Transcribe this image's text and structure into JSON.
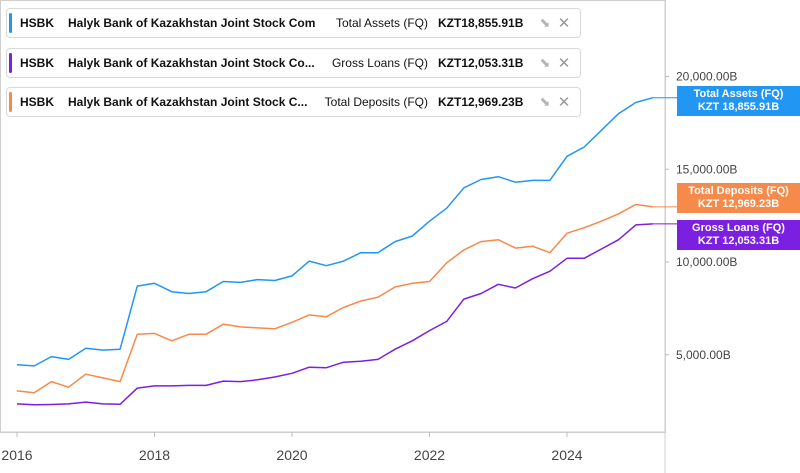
{
  "chart_data": {
    "type": "line",
    "x_ticks": [
      "2016",
      "2018",
      "2020",
      "2022",
      "2024"
    ],
    "y_ticks": [
      "5,000.00B",
      "10,000.00B",
      "15,000.00B",
      "20,000.00B"
    ],
    "ylim": [
      0,
      24000
    ],
    "grid": false,
    "x_dates": [
      2016.0,
      2016.25,
      2016.5,
      2016.75,
      2017.0,
      2017.25,
      2017.5,
      2017.75,
      2018.0,
      2018.25,
      2018.5,
      2018.75,
      2019.0,
      2019.25,
      2019.5,
      2019.75,
      2020.0,
      2020.25,
      2020.5,
      2020.75,
      2021.0,
      2021.25,
      2021.5,
      2021.75,
      2022.0,
      2022.25,
      2022.5,
      2022.75,
      2023.0,
      2023.25,
      2023.5,
      2023.75,
      2024.0,
      2024.25,
      2024.5,
      2024.75,
      2025.0,
      2025.25
    ],
    "series": [
      {
        "ticker": "HSBK",
        "company": "Halyk Bank of Kazakhstan Joint Stock Com...",
        "name": "Total Assets (FQ)",
        "value_label": "KZT18,855.91B",
        "tag_line1": "Total Assets (FQ)",
        "tag_line2": "KZT 18,855.91B",
        "color": "#2196F3",
        "values": [
          4460,
          4400,
          4900,
          4750,
          5350,
          5250,
          5300,
          8700,
          8850,
          8400,
          8300,
          8400,
          8950,
          8900,
          9050,
          9000,
          9250,
          10050,
          9800,
          10050,
          10500,
          10500,
          11100,
          11400,
          12200,
          12900,
          14000,
          14450,
          14600,
          14300,
          14400,
          14400,
          15700,
          16200,
          17100,
          18000,
          18600,
          18855.91
        ]
      },
      {
        "ticker": "HSBK",
        "company": "Halyk Bank of Kazakhstan Joint Stock Co...",
        "name": "Gross Loans (FQ)",
        "value_label": "KZT12,053.31B",
        "tag_line1": "Gross Loans (FQ)",
        "tag_line2": "KZT 12,053.31B",
        "color": "#7B1FE0",
        "values": [
          2350,
          2300,
          2320,
          2350,
          2450,
          2350,
          2330,
          3200,
          3320,
          3320,
          3350,
          3350,
          3580,
          3550,
          3650,
          3800,
          4000,
          4330,
          4300,
          4600,
          4650,
          4750,
          5300,
          5750,
          6300,
          6800,
          8000,
          8300,
          8800,
          8600,
          9100,
          9500,
          10200,
          10200,
          10700,
          11200,
          12000,
          12053.31
        ]
      },
      {
        "ticker": "HSBK",
        "company": "Halyk Bank of Kazakhstan Joint Stock C...",
        "name": "Total Deposits (FQ)",
        "value_label": "KZT12,969.23B",
        "tag_line1": "Total Deposits (FQ)",
        "tag_line2": "KZT 12,969.23B",
        "color": "#F58A4B",
        "values": [
          3050,
          2950,
          3550,
          3250,
          3950,
          3750,
          3550,
          6100,
          6150,
          5750,
          6100,
          6100,
          6650,
          6500,
          6450,
          6400,
          6750,
          7150,
          7050,
          7550,
          7900,
          8100,
          8650,
          8850,
          8950,
          9950,
          10650,
          11100,
          11200,
          10750,
          10850,
          10500,
          11550,
          11850,
          12200,
          12600,
          13100,
          12969.23
        ]
      }
    ]
  },
  "icons": {
    "share": "share-icon",
    "close": "close-icon"
  },
  "glyphs": {
    "share": "⬊",
    "close": "✕"
  },
  "colors": {
    "axis_text": "#444444",
    "border": "#d9d9d9",
    "bg": "#ffffff"
  }
}
